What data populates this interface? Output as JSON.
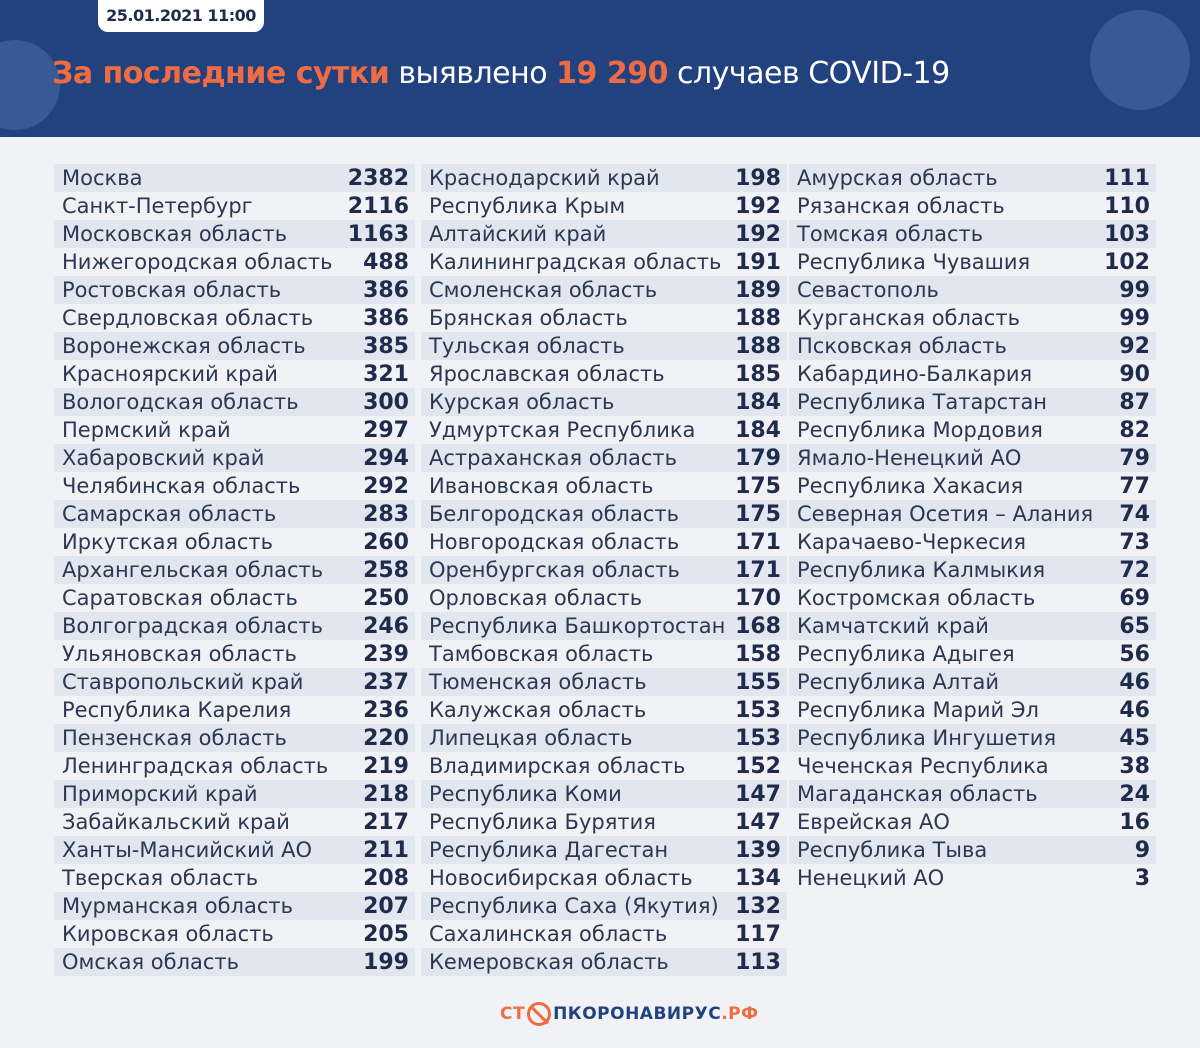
{
  "header": {
    "date": "25.01.2021 11:00",
    "title_accent": "За последние сутки",
    "title_mid": "выявлено",
    "total": "19 290",
    "title_end": "случаев COVID-19"
  },
  "columns": [
    [
      [
        "Москва",
        "2382"
      ],
      [
        "Санкт-Петербург",
        "2116"
      ],
      [
        "Московская область",
        "1163"
      ],
      [
        "Нижегородская область",
        "488"
      ],
      [
        "Ростовская область",
        "386"
      ],
      [
        "Свердловская область",
        "386"
      ],
      [
        "Воронежская область",
        "385"
      ],
      [
        "Красноярский край",
        "321"
      ],
      [
        "Вологодская область",
        "300"
      ],
      [
        "Пермский край",
        "297"
      ],
      [
        "Хабаровский край",
        "294"
      ],
      [
        "Челябинская область",
        "292"
      ],
      [
        "Самарская область",
        "283"
      ],
      [
        "Иркутская область",
        "260"
      ],
      [
        "Архангельская область",
        "258"
      ],
      [
        "Саратовская область",
        "250"
      ],
      [
        "Волгоградская область",
        "246"
      ],
      [
        "Ульяновская область",
        "239"
      ],
      [
        "Ставропольский край",
        "237"
      ],
      [
        "Республика Карелия",
        "236"
      ],
      [
        "Пензенская область",
        "220"
      ],
      [
        "Ленинградская область",
        "219"
      ],
      [
        "Приморский край",
        "218"
      ],
      [
        "Забайкальский край",
        "217"
      ],
      [
        "Ханты-Мансийский АО",
        "211"
      ],
      [
        "Тверская область",
        "208"
      ],
      [
        "Мурманская область",
        "207"
      ],
      [
        "Кировская область",
        "205"
      ],
      [
        "Омская область",
        "199"
      ]
    ],
    [
      [
        "Краснодарский край",
        "198"
      ],
      [
        "Республика Крым",
        "192"
      ],
      [
        "Алтайский край",
        "192"
      ],
      [
        "Калининградская область",
        "191"
      ],
      [
        "Смоленская область",
        "189"
      ],
      [
        "Брянская область",
        "188"
      ],
      [
        "Тульская область",
        "188"
      ],
      [
        "Ярославская область",
        "185"
      ],
      [
        "Курская область",
        "184"
      ],
      [
        "Удмуртская Республика",
        "184"
      ],
      [
        "Астраханская область",
        "179"
      ],
      [
        "Ивановская область",
        "175"
      ],
      [
        "Белгородская область",
        "175"
      ],
      [
        "Новгородская область",
        "171"
      ],
      [
        "Оренбургская область",
        "171"
      ],
      [
        "Орловская область",
        "170"
      ],
      [
        "Республика Башкортостан",
        "168"
      ],
      [
        "Тамбовская область",
        "158"
      ],
      [
        "Тюменская область",
        "155"
      ],
      [
        "Калужская область",
        "153"
      ],
      [
        "Липецкая область",
        "153"
      ],
      [
        "Владимирская область",
        "152"
      ],
      [
        "Республика Коми",
        "147"
      ],
      [
        "Республика Бурятия",
        "147"
      ],
      [
        "Республика Дагестан",
        "139"
      ],
      [
        "Новосибирская область",
        "134"
      ],
      [
        "Республика Саха (Якутия)",
        "132"
      ],
      [
        "Сахалинская область",
        "117"
      ],
      [
        "Кемеровская область",
        "113"
      ]
    ],
    [
      [
        "Амурская область",
        "111"
      ],
      [
        "Рязанская область",
        "110"
      ],
      [
        "Томская область",
        "103"
      ],
      [
        "Республика Чувашия",
        "102"
      ],
      [
        "Севастополь",
        "99"
      ],
      [
        "Курганская область",
        "99"
      ],
      [
        "Псковская область",
        "92"
      ],
      [
        "Кабардино-Балкария",
        "90"
      ],
      [
        "Республика Татарстан",
        "87"
      ],
      [
        "Республика Мордовия",
        "82"
      ],
      [
        "Ямало-Ненецкий АО",
        "79"
      ],
      [
        "Республика Хакасия",
        "77"
      ],
      [
        "Северная Осетия – Алания",
        "74"
      ],
      [
        "Карачаево-Черкесия",
        "73"
      ],
      [
        "Республика Калмыкия",
        "72"
      ],
      [
        "Костромская область",
        "69"
      ],
      [
        "Камчатский край",
        "65"
      ],
      [
        "Республика Адыгея",
        "56"
      ],
      [
        "Республика Алтай",
        "46"
      ],
      [
        "Республика Марий Эл",
        "46"
      ],
      [
        "Республика Ингушетия",
        "45"
      ],
      [
        "Чеченская Республика",
        "38"
      ],
      [
        "Магаданская область",
        "24"
      ],
      [
        "Еврейская АО",
        "16"
      ],
      [
        "Республика Тыва",
        "9"
      ],
      [
        "Ненецкий АО",
        "3"
      ]
    ]
  ],
  "logo": {
    "part1": "СТ",
    "part2": "ПКОРОНАВИРУС",
    "part3": ".РФ"
  },
  "colors": {
    "header": "#21427f",
    "accent": "#ef6c43"
  }
}
